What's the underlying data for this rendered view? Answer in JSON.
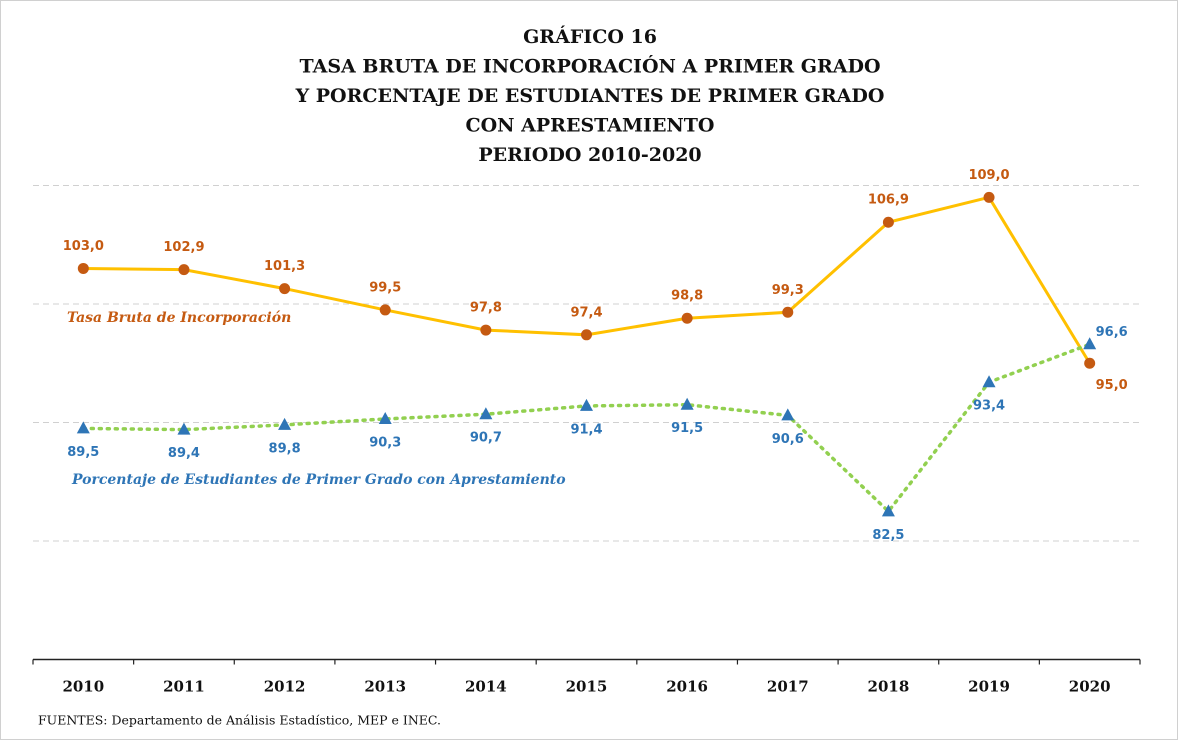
{
  "chart_data": {
    "type": "line",
    "title": [
      "GRÁFICO 16",
      "TASA BRUTA DE INCORPORACIÓN A PRIMER GRADO",
      "Y PORCENTAJE DE ESTUDIANTES DE PRIMER GRADO",
      "CON APRESTAMIENTO",
      "PERIODO 2010-2020"
    ],
    "categories": [
      "2010",
      "2011",
      "2012",
      "2013",
      "2014",
      "2015",
      "2016",
      "2017",
      "2018",
      "2019",
      "2020"
    ],
    "series": [
      {
        "name": "Tasa Bruta de Incorporación",
        "color": "#ffc000",
        "marker_color": "#c55a11",
        "marker": "circle",
        "line_style": "solid",
        "values": [
          103.0,
          102.9,
          101.3,
          99.5,
          97.8,
          97.4,
          98.8,
          99.3,
          106.9,
          109.0,
          95.0
        ],
        "value_labels": [
          "103,0",
          "102,9",
          "101,3",
          "99,5",
          "97,8",
          "97,4",
          "98,8",
          "99,3",
          "106,9",
          "109,0",
          "95,0"
        ]
      },
      {
        "name": "Porcentaje de Estudiantes de Primer Grado con Apresta­miento",
        "color": "#92d050",
        "marker_color": "#2e75b6",
        "marker": "triangle",
        "line_style": "dotted",
        "values": [
          89.5,
          89.4,
          89.8,
          90.3,
          90.7,
          91.4,
          91.5,
          90.6,
          82.5,
          93.4,
          96.6
        ],
        "value_labels": [
          "89,5",
          "89,4",
          "89,8",
          "90,3",
          "90,7",
          "91,4",
          "91,5",
          "90,6",
          "82,5",
          "93,4",
          "96,6"
        ]
      }
    ],
    "ylim": [
      70,
      110
    ],
    "yticks": [
      80,
      90,
      100,
      110
    ],
    "grid": true,
    "source": "FUENTES: Departamento de Análisis Estadístico, MEP e INEC."
  }
}
